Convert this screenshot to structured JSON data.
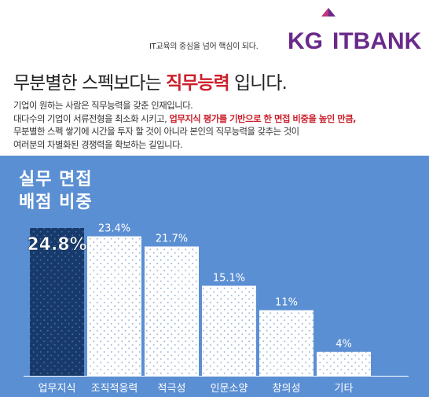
{
  "header": {
    "tagline": "IT교육의 중심을 넘어 핵심이 되다.",
    "logo_kg": "KG",
    "logo_itbank": "ITBANK",
    "brand_color": "#6a2a8a"
  },
  "headline": {
    "prefix": "무분별한 스펙보다는 ",
    "highlight": "직무능력",
    "suffix": " 입니다.",
    "highlight_color": "#cc1f2a"
  },
  "body": {
    "line1": "기업이 원하는 사람은 직무능력을 갖춘 인재입니다.",
    "line2_prefix": "대다수의 기업이 서류전형을 최소화 시키고, ",
    "line2_highlight": "업무지식 평가를 기반으로 한 면접 비중을 높인 만큼,",
    "line3": "무분별한 스펙 쌓기에 시간을 투자 할 것이 아니라 본인의 직무능력을 갖추는 것이",
    "line4": "여러분의 차별화된 경쟁력을 확보하는 길입니다."
  },
  "colors": {
    "panel": "#5b8fd3",
    "bar_highlight": "#173a6b",
    "bar_normal": "#ffffff",
    "dots_normal": "#9fb8dc",
    "dots_highlight": "#3f6aa8"
  },
  "chart_data": {
    "type": "bar",
    "title_line1": "실무 면접",
    "title_line2": "배점 비중",
    "categories": [
      "업무지식",
      "조직적응력",
      "적극성",
      "인문소양",
      "창의성",
      "기타"
    ],
    "values": [
      24.8,
      23.4,
      21.7,
      15.1,
      11,
      4
    ],
    "value_labels": [
      "24.8%",
      "23.4%",
      "21.7%",
      "15.1%",
      "11%",
      "4%"
    ],
    "highlight_index": 0
  }
}
